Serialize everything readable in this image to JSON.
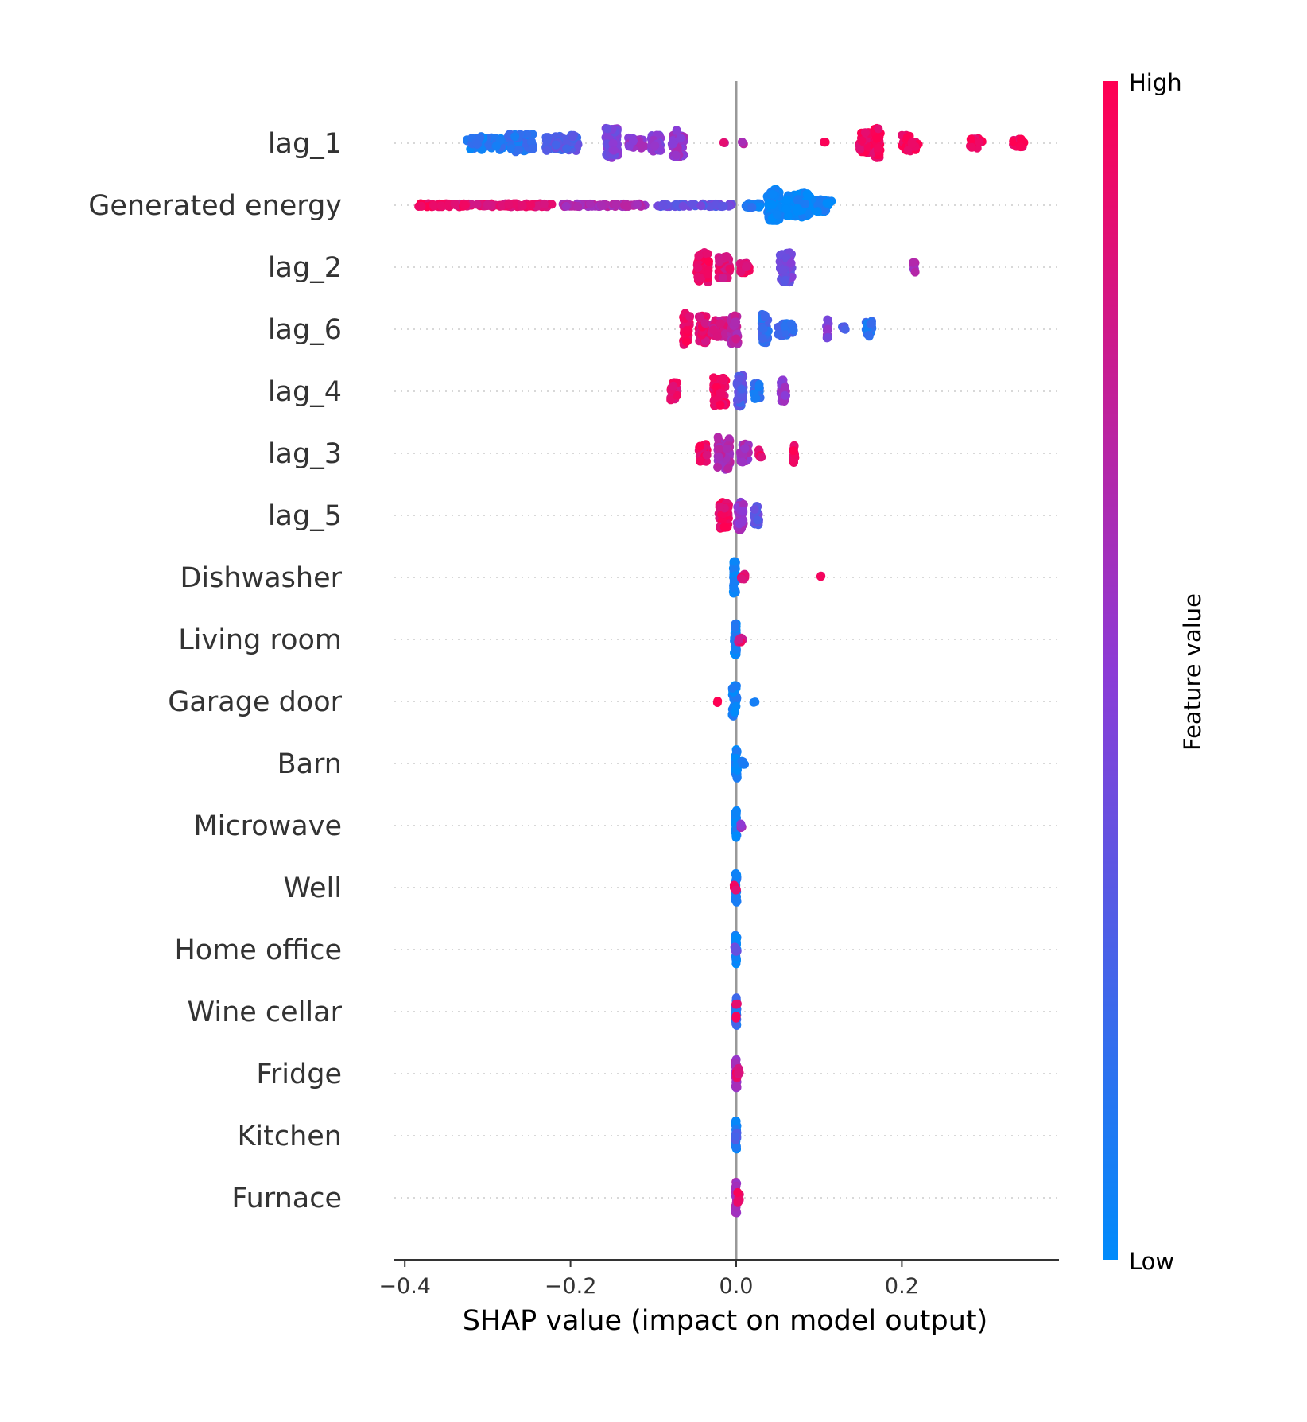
{
  "chart_data": {
    "type": "scatter",
    "subtype": "shap-beeswarm-summary",
    "xlabel": "SHAP value (impact on model output)",
    "xticks": [
      -0.4,
      -0.2,
      0.0,
      0.2
    ],
    "xtick_labels": [
      "−0.4",
      "−0.2",
      "0.0",
      "0.2"
    ],
    "xlim": [
      -0.415,
      0.39
    ],
    "zero_line": true,
    "grid": "dotted horizontal per feature",
    "colors": {
      "low": "#008bfb",
      "mid": "#8c3bd6",
      "high": "#ff0052"
    },
    "colorbar": {
      "label": "Feature value",
      "high_label": "High",
      "low_label": "Low",
      "placement": "right"
    },
    "features": [
      {
        "name": "lag_1",
        "clusters": [
          {
            "x": -0.3,
            "w": 0.05,
            "n": 60,
            "spread": 0.25,
            "v": 0.1
          },
          {
            "x": -0.26,
            "w": 0.03,
            "n": 60,
            "spread": 0.35,
            "v": 0.15
          },
          {
            "x": -0.21,
            "w": 0.04,
            "n": 60,
            "spread": 0.3,
            "v": 0.3
          },
          {
            "x": -0.15,
            "w": 0.015,
            "n": 80,
            "spread": 0.55,
            "v": 0.45
          },
          {
            "x": -0.12,
            "w": 0.02,
            "n": 30,
            "spread": 0.2,
            "v": 0.55
          },
          {
            "x": -0.097,
            "w": 0.012,
            "n": 40,
            "spread": 0.3,
            "v": 0.5
          },
          {
            "x": -0.07,
            "w": 0.015,
            "n": 50,
            "spread": 0.55,
            "v": 0.55
          },
          {
            "x": -0.015,
            "w": 0.003,
            "n": 2,
            "spread": 0.05,
            "v": 0.8
          },
          {
            "x": 0.008,
            "w": 0.002,
            "n": 2,
            "spread": 0.05,
            "v": 0.7
          },
          {
            "x": 0.107,
            "w": 0.002,
            "n": 2,
            "spread": 0.05,
            "v": 0.95
          },
          {
            "x": 0.155,
            "w": 0.012,
            "n": 40,
            "spread": 0.4,
            "v": 0.95
          },
          {
            "x": 0.17,
            "w": 0.008,
            "n": 40,
            "spread": 0.55,
            "v": 0.95
          },
          {
            "x": 0.21,
            "w": 0.02,
            "n": 30,
            "spread": 0.3,
            "v": 0.95
          },
          {
            "x": 0.29,
            "w": 0.015,
            "n": 20,
            "spread": 0.2,
            "v": 0.95
          },
          {
            "x": 0.34,
            "w": 0.015,
            "n": 15,
            "spread": 0.15,
            "v": 0.95
          }
        ]
      },
      {
        "name": "Generated energy",
        "clusters": [
          {
            "x": -0.365,
            "w": 0.04,
            "n": 40,
            "spread": 0.06,
            "v": 0.95
          },
          {
            "x": -0.28,
            "w": 0.12,
            "n": 100,
            "spread": 0.06,
            "v": 0.88
          },
          {
            "x": -0.16,
            "w": 0.1,
            "n": 80,
            "spread": 0.05,
            "v": 0.65
          },
          {
            "x": -0.05,
            "w": 0.09,
            "n": 70,
            "spread": 0.05,
            "v": 0.35
          },
          {
            "x": 0.02,
            "w": 0.02,
            "n": 30,
            "spread": 0.08,
            "v": 0.1
          },
          {
            "x": 0.045,
            "w": 0.015,
            "n": 90,
            "spread": 0.6,
            "v": 0.02
          },
          {
            "x": 0.075,
            "w": 0.03,
            "n": 80,
            "spread": 0.45,
            "v": 0.02
          },
          {
            "x": 0.105,
            "w": 0.02,
            "n": 30,
            "spread": 0.25,
            "v": 0.03
          }
        ]
      },
      {
        "name": "lag_2",
        "clusters": [
          {
            "x": -0.04,
            "w": 0.015,
            "n": 60,
            "spread": 0.55,
            "v": 0.92
          },
          {
            "x": -0.015,
            "w": 0.015,
            "n": 40,
            "spread": 0.4,
            "v": 0.85
          },
          {
            "x": 0.01,
            "w": 0.012,
            "n": 25,
            "spread": 0.2,
            "v": 0.9
          },
          {
            "x": 0.06,
            "w": 0.015,
            "n": 60,
            "spread": 0.55,
            "v": 0.4
          },
          {
            "x": 0.215,
            "w": 0.003,
            "n": 8,
            "spread": 0.2,
            "v": 0.6
          }
        ]
      },
      {
        "name": "lag_6",
        "clusters": [
          {
            "x": -0.06,
            "w": 0.008,
            "n": 50,
            "spread": 0.6,
            "v": 0.95
          },
          {
            "x": -0.04,
            "w": 0.01,
            "n": 50,
            "spread": 0.5,
            "v": 0.88
          },
          {
            "x": -0.02,
            "w": 0.02,
            "n": 40,
            "spread": 0.35,
            "v": 0.8
          },
          {
            "x": -0.002,
            "w": 0.008,
            "n": 40,
            "spread": 0.55,
            "v": 0.7
          },
          {
            "x": 0.035,
            "w": 0.008,
            "n": 40,
            "spread": 0.55,
            "v": 0.2
          },
          {
            "x": 0.06,
            "w": 0.02,
            "n": 30,
            "spread": 0.25,
            "v": 0.2
          },
          {
            "x": 0.11,
            "w": 0.003,
            "n": 12,
            "spread": 0.4,
            "v": 0.45
          },
          {
            "x": 0.13,
            "w": 0.004,
            "n": 4,
            "spread": 0.1,
            "v": 0.3
          },
          {
            "x": 0.16,
            "w": 0.008,
            "n": 25,
            "spread": 0.3,
            "v": 0.15
          }
        ]
      },
      {
        "name": "lag_4",
        "clusters": [
          {
            "x": -0.075,
            "w": 0.008,
            "n": 25,
            "spread": 0.35,
            "v": 0.9
          },
          {
            "x": -0.02,
            "w": 0.015,
            "n": 60,
            "spread": 0.55,
            "v": 0.92
          },
          {
            "x": 0.005,
            "w": 0.008,
            "n": 40,
            "spread": 0.6,
            "v": 0.3
          },
          {
            "x": 0.025,
            "w": 0.008,
            "n": 25,
            "spread": 0.3,
            "v": 0.15
          },
          {
            "x": 0.057,
            "w": 0.006,
            "n": 30,
            "spread": 0.45,
            "v": 0.55
          }
        ]
      },
      {
        "name": "lag_3",
        "clusters": [
          {
            "x": -0.04,
            "w": 0.01,
            "n": 30,
            "spread": 0.35,
            "v": 0.92
          },
          {
            "x": -0.015,
            "w": 0.015,
            "n": 60,
            "spread": 0.6,
            "v": 0.65
          },
          {
            "x": 0.01,
            "w": 0.01,
            "n": 30,
            "spread": 0.35,
            "v": 0.6
          },
          {
            "x": 0.03,
            "w": 0.006,
            "n": 10,
            "spread": 0.15,
            "v": 0.9
          },
          {
            "x": 0.07,
            "w": 0.002,
            "n": 15,
            "spread": 0.35,
            "v": 0.95
          }
        ]
      },
      {
        "name": "lag_5",
        "clusters": [
          {
            "x": -0.015,
            "w": 0.012,
            "n": 60,
            "spread": 0.5,
            "v": 0.92
          },
          {
            "x": 0.005,
            "w": 0.008,
            "n": 40,
            "spread": 0.55,
            "v": 0.55
          },
          {
            "x": 0.025,
            "w": 0.006,
            "n": 20,
            "spread": 0.35,
            "v": 0.35
          }
        ]
      },
      {
        "name": "Dishwasher",
        "clusters": [
          {
            "x": -0.002,
            "w": 0.003,
            "n": 40,
            "spread": 0.6,
            "v": 0.03
          },
          {
            "x": 0.008,
            "w": 0.006,
            "n": 10,
            "spread": 0.15,
            "v": 0.9
          },
          {
            "x": 0.102,
            "w": 0.001,
            "n": 2,
            "spread": 0.05,
            "v": 0.95
          }
        ]
      },
      {
        "name": "Living room",
        "clusters": [
          {
            "x": -0.001,
            "w": 0.003,
            "n": 40,
            "spread": 0.6,
            "v": 0.05
          },
          {
            "x": 0.005,
            "w": 0.006,
            "n": 12,
            "spread": 0.1,
            "v": 0.85
          }
        ]
      },
      {
        "name": "Garage door",
        "clusters": [
          {
            "x": -0.022,
            "w": 0.002,
            "n": 2,
            "spread": 0.05,
            "v": 0.95
          },
          {
            "x": -0.002,
            "w": 0.006,
            "n": 40,
            "spread": 0.6,
            "v": 0.05
          },
          {
            "x": 0.022,
            "w": 0.002,
            "n": 2,
            "spread": 0.05,
            "v": 0.05
          }
        ]
      },
      {
        "name": "Barn",
        "clusters": [
          {
            "x": 0.0,
            "w": 0.003,
            "n": 40,
            "spread": 0.55,
            "v": 0.05
          },
          {
            "x": 0.008,
            "w": 0.005,
            "n": 10,
            "spread": 0.1,
            "v": 0.05
          }
        ]
      },
      {
        "name": "Microwave",
        "clusters": [
          {
            "x": 0.0,
            "w": 0.002,
            "n": 35,
            "spread": 0.55,
            "v": 0.05
          },
          {
            "x": 0.006,
            "w": 0.002,
            "n": 4,
            "spread": 0.1,
            "v": 0.6
          }
        ]
      },
      {
        "name": "Well",
        "clusters": [
          {
            "x": 0.0,
            "w": 0.002,
            "n": 35,
            "spread": 0.55,
            "v": 0.05
          },
          {
            "x": -0.001,
            "w": 0.005,
            "n": 8,
            "spread": 0.1,
            "v": 0.95
          }
        ]
      },
      {
        "name": "Home office",
        "clusters": [
          {
            "x": 0.0,
            "w": 0.002,
            "n": 35,
            "spread": 0.55,
            "v": 0.05
          },
          {
            "x": 0.0,
            "w": 0.004,
            "n": 6,
            "spread": 0.1,
            "v": 0.4
          }
        ]
      },
      {
        "name": "Wine cellar",
        "clusters": [
          {
            "x": 0.0,
            "w": 0.002,
            "n": 35,
            "spread": 0.55,
            "v": 0.15
          },
          {
            "x": 0.0,
            "w": 0.003,
            "n": 6,
            "spread": 0.3,
            "v": 0.9
          }
        ]
      },
      {
        "name": "Fridge",
        "clusters": [
          {
            "x": 0.0,
            "w": 0.002,
            "n": 35,
            "spread": 0.55,
            "v": 0.6
          },
          {
            "x": 0.002,
            "w": 0.004,
            "n": 12,
            "spread": 0.2,
            "v": 0.9
          }
        ]
      },
      {
        "name": "Kitchen",
        "clusters": [
          {
            "x": 0.0,
            "w": 0.002,
            "n": 35,
            "spread": 0.55,
            "v": 0.05
          },
          {
            "x": 0.0,
            "w": 0.002,
            "n": 5,
            "spread": 0.2,
            "v": 0.3
          }
        ]
      },
      {
        "name": "Furnace",
        "clusters": [
          {
            "x": 0.0,
            "w": 0.002,
            "n": 35,
            "spread": 0.6,
            "v": 0.6
          },
          {
            "x": 0.003,
            "w": 0.004,
            "n": 10,
            "spread": 0.2,
            "v": 0.9
          }
        ]
      }
    ]
  }
}
